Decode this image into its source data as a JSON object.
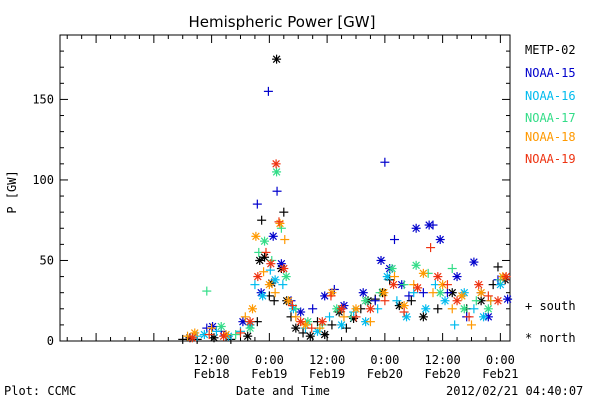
{
  "chart_data": {
    "type": "scatter",
    "title": "Hemispheric Power [GW]",
    "ylabel": "P [GW]",
    "xlabel": "Date and Time",
    "ylim": [
      0,
      190
    ],
    "x_unit": "hours since 2012-02-17 00:00 UT",
    "xlim": [
      4.5,
      98
    ],
    "yticks": [
      0,
      50,
      100,
      150
    ],
    "xticks": [
      {
        "x": 36,
        "time": "12:00",
        "date": "Feb18"
      },
      {
        "x": 48,
        "time": "0:00",
        "date": "Feb19"
      },
      {
        "x": 60,
        "time": "12:00",
        "date": "Feb19"
      },
      {
        "x": 72,
        "time": "0:00",
        "date": "Feb20"
      },
      {
        "x": 84,
        "time": "12:00",
        "date": "Feb20"
      },
      {
        "x": 96,
        "time": "0:00",
        "date": "Feb21"
      }
    ],
    "markers": {
      "south": "+",
      "north": "*"
    },
    "series": [
      {
        "name": "METP-02",
        "color": "#000000",
        "points": [
          [
            30.0,
            1,
            "+"
          ],
          [
            31.5,
            2,
            "*"
          ],
          [
            33.0,
            1,
            "+"
          ],
          [
            36.5,
            2,
            "*"
          ],
          [
            40.0,
            1,
            "+"
          ],
          [
            43.5,
            3,
            "*"
          ],
          [
            45.5,
            12,
            "+"
          ],
          [
            46.0,
            50,
            "*"
          ],
          [
            46.4,
            75,
            "+"
          ],
          [
            47.0,
            52,
            "*"
          ],
          [
            48.0,
            28,
            "+"
          ],
          [
            48.5,
            36,
            "*"
          ],
          [
            49.0,
            25,
            "+"
          ],
          [
            49.5,
            175,
            "*"
          ],
          [
            50.5,
            45,
            "*"
          ],
          [
            51.0,
            80,
            "+"
          ],
          [
            51.6,
            25,
            "*"
          ],
          [
            52.5,
            15,
            "+"
          ],
          [
            53.5,
            8,
            "*"
          ],
          [
            55.0,
            5,
            "+"
          ],
          [
            56.5,
            3,
            "*"
          ],
          [
            58.0,
            12,
            "+"
          ],
          [
            59.5,
            4,
            "*"
          ],
          [
            61.0,
            10,
            "+"
          ],
          [
            62.5,
            18,
            "*"
          ],
          [
            64.0,
            8,
            "+"
          ],
          [
            65.5,
            14,
            "*"
          ],
          [
            67.0,
            20,
            "+"
          ],
          [
            68.5,
            25,
            "*"
          ],
          [
            70.0,
            26,
            "+"
          ],
          [
            71.5,
            30,
            "*"
          ],
          [
            73.0,
            38,
            "+"
          ],
          [
            75.0,
            22,
            "*"
          ],
          [
            77.5,
            25,
            "+"
          ],
          [
            80.0,
            15,
            "*"
          ],
          [
            83.0,
            20,
            "+"
          ],
          [
            86.0,
            30,
            "*"
          ],
          [
            89.0,
            20,
            "+"
          ],
          [
            92.0,
            25,
            "*"
          ],
          [
            94.5,
            35,
            "+"
          ],
          [
            95.5,
            46,
            "+"
          ],
          [
            97.0,
            38,
            "*"
          ]
        ]
      },
      {
        "name": "NOAA-15",
        "color": "#0000cc",
        "points": [
          [
            35.0,
            8,
            "+"
          ],
          [
            36.2,
            9,
            "*"
          ],
          [
            38.0,
            6,
            "+"
          ],
          [
            42.5,
            12,
            "*"
          ],
          [
            45.5,
            85,
            "+"
          ],
          [
            46.3,
            30,
            "*"
          ],
          [
            47.8,
            155,
            "+"
          ],
          [
            48.8,
            65,
            "*"
          ],
          [
            49.6,
            93,
            "+"
          ],
          [
            50.5,
            48,
            "*"
          ],
          [
            52.5,
            25,
            "+"
          ],
          [
            54.5,
            18,
            "*"
          ],
          [
            57.0,
            20,
            "+"
          ],
          [
            59.5,
            28,
            "*"
          ],
          [
            61.5,
            32,
            "+"
          ],
          [
            63.5,
            22,
            "*"
          ],
          [
            65.0,
            15,
            "+"
          ],
          [
            67.5,
            30,
            "*"
          ],
          [
            70.0,
            25,
            "+"
          ],
          [
            71.2,
            50,
            "*"
          ],
          [
            72.0,
            111,
            "+"
          ],
          [
            73.0,
            45,
            "*"
          ],
          [
            74.0,
            63,
            "+"
          ],
          [
            75.5,
            35,
            "*"
          ],
          [
            77.0,
            28,
            "+"
          ],
          [
            78.5,
            70,
            "*"
          ],
          [
            80.0,
            30,
            "+"
          ],
          [
            81.2,
            72,
            "*"
          ],
          [
            82.0,
            72,
            "+"
          ],
          [
            83.5,
            63,
            "*"
          ],
          [
            85.0,
            30,
            "+"
          ],
          [
            87.0,
            40,
            "*"
          ],
          [
            89.0,
            15,
            "+"
          ],
          [
            90.5,
            49,
            "*"
          ],
          [
            92.0,
            30,
            "+"
          ],
          [
            93.5,
            15,
            "*"
          ],
          [
            95.5,
            38,
            "+"
          ],
          [
            97.5,
            26,
            "*"
          ]
        ]
      },
      {
        "name": "NOAA-16",
        "color": "#00bbee",
        "points": [
          [
            33.0,
            3,
            "+"
          ],
          [
            34.5,
            4,
            "*"
          ],
          [
            37.0,
            6,
            "+"
          ],
          [
            39.5,
            3,
            "*"
          ],
          [
            42.0,
            6,
            "+"
          ],
          [
            44.0,
            10,
            "*"
          ],
          [
            45.0,
            35,
            "+"
          ],
          [
            46.6,
            28,
            "*"
          ],
          [
            48.2,
            44,
            "+"
          ],
          [
            49.2,
            38,
            "*"
          ],
          [
            50.8,
            35,
            "+"
          ],
          [
            53.0,
            20,
            "*"
          ],
          [
            55.5,
            8,
            "+"
          ],
          [
            58.0,
            6,
            "*"
          ],
          [
            60.5,
            15,
            "+"
          ],
          [
            63.0,
            10,
            "*"
          ],
          [
            65.5,
            18,
            "+"
          ],
          [
            68.0,
            12,
            "*"
          ],
          [
            70.5,
            20,
            "+"
          ],
          [
            72.5,
            40,
            "*"
          ],
          [
            74.5,
            25,
            "+"
          ],
          [
            76.5,
            15,
            "*"
          ],
          [
            78.0,
            30,
            "+"
          ],
          [
            80.5,
            20,
            "*"
          ],
          [
            82.5,
            35,
            "+"
          ],
          [
            84.5,
            25,
            "*"
          ],
          [
            86.5,
            10,
            "+"
          ],
          [
            88.5,
            30,
            "*"
          ],
          [
            90.5,
            20,
            "+"
          ],
          [
            92.5,
            15,
            "*"
          ],
          [
            94.0,
            25,
            "+"
          ],
          [
            96.0,
            35,
            "*"
          ]
        ]
      },
      {
        "name": "NOAA-17",
        "color": "#33dd88",
        "points": [
          [
            35.0,
            31,
            "+"
          ],
          [
            38.0,
            9,
            "*"
          ],
          [
            41.0,
            4,
            "+"
          ],
          [
            44.0,
            8,
            "*"
          ],
          [
            45.8,
            55,
            "+"
          ],
          [
            47.0,
            62,
            "*"
          ],
          [
            48.5,
            50,
            "+"
          ],
          [
            49.5,
            105,
            "*"
          ],
          [
            50.5,
            70,
            "+"
          ],
          [
            51.5,
            40,
            "*"
          ],
          [
            53.5,
            20,
            "+"
          ],
          [
            56.0,
            12,
            "*"
          ],
          [
            59.0,
            10,
            "+"
          ],
          [
            62.0,
            20,
            "*"
          ],
          [
            65.0,
            15,
            "+"
          ],
          [
            68.0,
            25,
            "*"
          ],
          [
            71.0,
            30,
            "+"
          ],
          [
            73.5,
            45,
            "*"
          ],
          [
            76.0,
            35,
            "+"
          ],
          [
            78.5,
            47,
            "*"
          ],
          [
            81.0,
            42,
            "+"
          ],
          [
            83.5,
            30,
            "*"
          ],
          [
            86.0,
            45,
            "+"
          ],
          [
            88.5,
            20,
            "*"
          ],
          [
            91.0,
            25,
            "+"
          ],
          [
            93.5,
            20,
            "*"
          ],
          [
            96.0,
            38,
            "+"
          ]
        ]
      },
      {
        "name": "NOAA-18",
        "color": "#ff9900",
        "points": [
          [
            31.0,
            3,
            "+"
          ],
          [
            32.5,
            5,
            "*"
          ],
          [
            36.0,
            8,
            "+"
          ],
          [
            39.0,
            4,
            "*"
          ],
          [
            43.0,
            15,
            "+"
          ],
          [
            44.5,
            20,
            "*"
          ],
          [
            45.2,
            65,
            "*"
          ],
          [
            46.8,
            43,
            "+"
          ],
          [
            48.0,
            35,
            "*"
          ],
          [
            49.2,
            30,
            "+"
          ],
          [
            50.2,
            73,
            "*"
          ],
          [
            51.2,
            63,
            "+"
          ],
          [
            52.0,
            25,
            "*"
          ],
          [
            53.5,
            15,
            "+"
          ],
          [
            55.5,
            10,
            "*"
          ],
          [
            58.5,
            8,
            "+"
          ],
          [
            61.0,
            30,
            "*"
          ],
          [
            63.5,
            15,
            "+"
          ],
          [
            66.0,
            20,
            "*"
          ],
          [
            69.0,
            12,
            "+"
          ],
          [
            71.8,
            30,
            "*"
          ],
          [
            74.0,
            40,
            "+"
          ],
          [
            76.0,
            22,
            "*"
          ],
          [
            78.0,
            35,
            "+"
          ],
          [
            80.0,
            42,
            "*"
          ],
          [
            82.0,
            30,
            "+"
          ],
          [
            84.0,
            35,
            "*"
          ],
          [
            86.0,
            20,
            "+"
          ],
          [
            88.0,
            28,
            "*"
          ],
          [
            90.0,
            10,
            "+"
          ],
          [
            92.0,
            30,
            "*"
          ],
          [
            94.0,
            25,
            "+"
          ],
          [
            96.5,
            40,
            "*"
          ]
        ]
      },
      {
        "name": "NOAA-19",
        "color": "#ee3311",
        "points": [
          [
            32.0,
            2,
            "*"
          ],
          [
            35.5,
            4,
            "+"
          ],
          [
            38.5,
            3,
            "*"
          ],
          [
            42.0,
            5,
            "+"
          ],
          [
            44.0,
            12,
            "*"
          ],
          [
            45.6,
            40,
            "*"
          ],
          [
            47.3,
            55,
            "+"
          ],
          [
            48.3,
            48,
            "*"
          ],
          [
            49.4,
            110,
            "*"
          ],
          [
            50.0,
            74,
            "+"
          ],
          [
            51.0,
            45,
            "*"
          ],
          [
            52.8,
            22,
            "+"
          ],
          [
            54.5,
            12,
            "*"
          ],
          [
            56.8,
            8,
            "+"
          ],
          [
            59.0,
            12,
            "*"
          ],
          [
            60.8,
            28,
            "+"
          ],
          [
            63.0,
            20,
            "*"
          ],
          [
            66.0,
            15,
            "+"
          ],
          [
            69.0,
            20,
            "*"
          ],
          [
            72.0,
            25,
            "+"
          ],
          [
            73.8,
            35,
            "*"
          ],
          [
            76.0,
            18,
            "+"
          ],
          [
            78.8,
            33,
            "*"
          ],
          [
            81.5,
            58,
            "+"
          ],
          [
            83.0,
            40,
            "*"
          ],
          [
            85.0,
            35,
            "+"
          ],
          [
            87.0,
            25,
            "*"
          ],
          [
            89.5,
            15,
            "+"
          ],
          [
            91.5,
            35,
            "*"
          ],
          [
            93.5,
            28,
            "+"
          ],
          [
            95.5,
            25,
            "*"
          ],
          [
            97.2,
            40,
            "*"
          ]
        ]
      }
    ]
  },
  "legend": {
    "series_labels": [
      "METP-02",
      "NOAA-15",
      "NOAA-16",
      "NOAA-17",
      "NOAA-18",
      "NOAA-19"
    ],
    "south": "+ south",
    "north": "* north"
  },
  "footer": {
    "plot_label": "Plot: CCMC",
    "xlabel": "Date and Time",
    "timestamp": "2012/02/21 04:40:07"
  }
}
